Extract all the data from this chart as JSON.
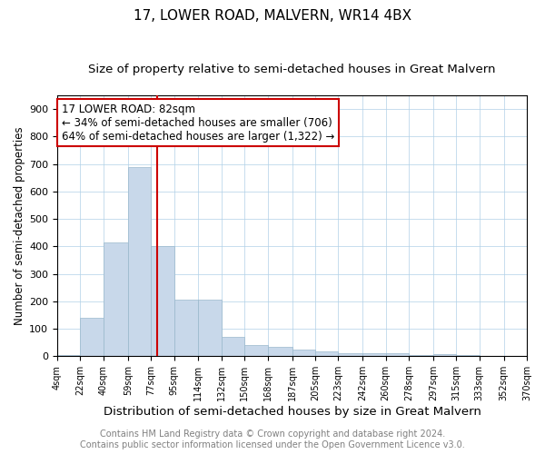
{
  "title": "17, LOWER ROAD, MALVERN, WR14 4BX",
  "subtitle": "Size of property relative to semi-detached houses in Great Malvern",
  "xlabel": "Distribution of semi-detached houses by size in Great Malvern",
  "ylabel": "Number of semi-detached properties",
  "bin_edges": [
    4,
    22,
    40,
    59,
    77,
    95,
    114,
    132,
    150,
    168,
    187,
    205,
    223,
    242,
    260,
    278,
    297,
    315,
    333,
    352,
    370
  ],
  "tick_labels": [
    "4sqm",
    "22sqm",
    "40sqm",
    "59sqm",
    "77sqm",
    "95sqm",
    "114sqm",
    "132sqm",
    "150sqm",
    "168sqm",
    "187sqm",
    "205sqm",
    "223sqm",
    "242sqm",
    "260sqm",
    "278sqm",
    "297sqm",
    "315sqm",
    "333sqm",
    "352sqm",
    "370sqm"
  ],
  "bar_values": [
    5,
    140,
    415,
    690,
    400,
    205,
    205,
    70,
    40,
    35,
    25,
    18,
    12,
    10,
    10,
    5,
    8,
    5,
    0,
    0
  ],
  "property_sqm": 82,
  "property_label": "17 LOWER ROAD: 82sqm",
  "pct_smaller": 34,
  "pct_larger": 64,
  "count_smaller": 706,
  "count_larger": 1322,
  "bar_color": "#c8d8ea",
  "bar_edge_color": "#9ab8cc",
  "redline_color": "#cc0000",
  "annotation_box_edgecolor": "#cc0000",
  "ylim": [
    0,
    950
  ],
  "yticks": [
    0,
    100,
    200,
    300,
    400,
    500,
    600,
    700,
    800,
    900
  ],
  "grid_color": "#b0d0e8",
  "title_fontsize": 11,
  "subtitle_fontsize": 9.5,
  "xlabel_fontsize": 9.5,
  "ylabel_fontsize": 8.5,
  "tick_fontsize": 7,
  "footer_fontsize": 7,
  "annotation_fontsize": 8.5,
  "footer_line1": "Contains HM Land Registry data © Crown copyright and database right 2024.",
  "footer_line2": "Contains public sector information licensed under the Open Government Licence v3.0."
}
